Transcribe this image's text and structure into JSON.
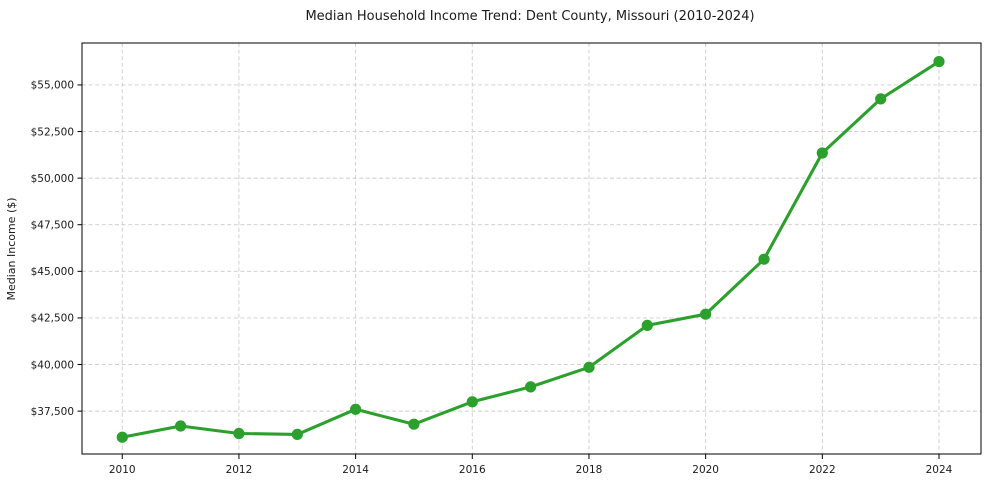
{
  "chart_data": {
    "type": "line",
    "title": "Median Household Income Trend: Dent County, Missouri (2010-2024)",
    "xlabel": "",
    "ylabel": "Median Income ($)",
    "x": [
      2010,
      2011,
      2012,
      2013,
      2014,
      2015,
      2016,
      2017,
      2018,
      2019,
      2020,
      2021,
      2022,
      2023,
      2024
    ],
    "values": [
      36100,
      36700,
      36300,
      36250,
      37600,
      36800,
      38000,
      38800,
      39850,
      42100,
      42700,
      45650,
      51350,
      54250,
      56250
    ],
    "x_ticks": [
      2010,
      2012,
      2014,
      2016,
      2018,
      2020,
      2022,
      2024
    ],
    "x_tick_labels": [
      "2010",
      "2012",
      "2014",
      "2016",
      "2018",
      "2020",
      "2022",
      "2024"
    ],
    "y_ticks": [
      37500,
      40000,
      42500,
      45000,
      47500,
      50000,
      52500,
      55000
    ],
    "y_tick_labels": [
      "$37,500",
      "$40,000",
      "$42,500",
      "$45,000",
      "$47,500",
      "$50,000",
      "$52,500",
      "$55,000"
    ],
    "xlim": [
      2009.31,
      2024.72
    ],
    "ylim": [
      35200,
      57250
    ],
    "line_color": "#2ca02c",
    "marker": "circle",
    "grid": "dashed",
    "grid_color": "#cccccc",
    "spine_color": "#000000",
    "background": "#ffffff",
    "legend": "none"
  }
}
